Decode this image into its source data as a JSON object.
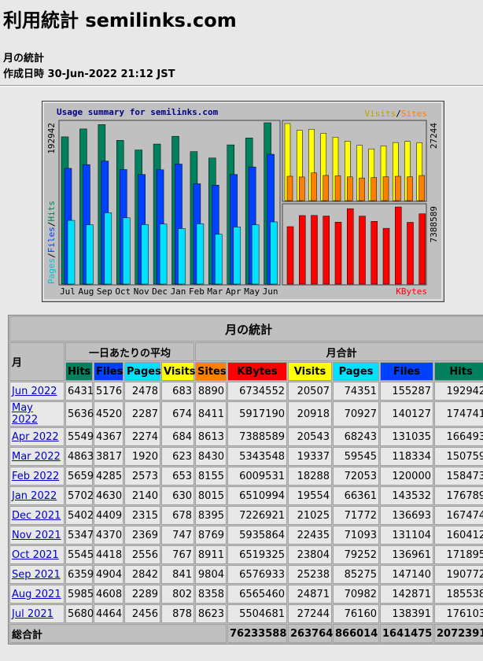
{
  "header": {
    "title": "利用統計 semilinks.com",
    "subtitle": "月の統計",
    "generated_label": "作成日時",
    "generated": "30-Jun-2022 21:12 JST"
  },
  "chart": {
    "title": "Usage summary for semilinks.com",
    "months": [
      "Jul",
      "Aug",
      "Sep",
      "Oct",
      "Nov",
      "Dec",
      "Jan",
      "Feb",
      "Mar",
      "Apr",
      "May",
      "Jun"
    ],
    "hits_max": 192942,
    "visits_max": 27244,
    "kbytes_max": 7388589,
    "legend": {
      "pages": "Pages",
      "files": "Files",
      "hits": "Hits",
      "visits": "Visits",
      "sites": "Sites",
      "kbytes": "KBytes",
      "sep": "/"
    },
    "colors": {
      "hits": "#00805c",
      "files": "#0040ff",
      "pages": "#00e0ff",
      "visits": "#ffff00",
      "sites": "#ff8000",
      "kbytes": "#ff0000"
    }
  },
  "table": {
    "title": "月の統計",
    "month_header": "月",
    "daily_header": "一日あたりの平均",
    "total_header": "月合計",
    "columns": [
      "Hits",
      "Files",
      "Pages",
      "Visits",
      "Sites",
      "KBytes",
      "Visits",
      "Pages",
      "Files",
      "Hits"
    ],
    "rows": [
      [
        "Jun 2022",
        6431,
        5176,
        2478,
        683,
        8890,
        6734552,
        20507,
        74351,
        155287,
        192942
      ],
      [
        "May 2022",
        5636,
        4520,
        2287,
        674,
        8411,
        5917190,
        20918,
        70927,
        140127,
        174741
      ],
      [
        "Apr 2022",
        5549,
        4367,
        2274,
        684,
        8613,
        7388589,
        20543,
        68243,
        131035,
        166493
      ],
      [
        "Mar 2022",
        4863,
        3817,
        1920,
        623,
        8430,
        5343548,
        19337,
        59545,
        118334,
        150759
      ],
      [
        "Feb 2022",
        5659,
        4285,
        2573,
        653,
        8155,
        6009531,
        18288,
        72053,
        120000,
        158473
      ],
      [
        "Jan 2022",
        5702,
        4630,
        2140,
        630,
        8015,
        6510994,
        19554,
        66361,
        143532,
        176789
      ],
      [
        "Dec 2021",
        5402,
        4409,
        2315,
        678,
        8395,
        7226921,
        21025,
        71772,
        136693,
        167474
      ],
      [
        "Nov 2021",
        5347,
        4370,
        2369,
        747,
        8769,
        5935864,
        22435,
        71093,
        131104,
        160412
      ],
      [
        "Oct 2021",
        5545,
        4418,
        2556,
        767,
        8911,
        6519325,
        23804,
        79252,
        136961,
        171895
      ],
      [
        "Sep 2021",
        6359,
        4904,
        2842,
        841,
        9804,
        6576933,
        25238,
        85275,
        147140,
        190772
      ],
      [
        "Aug 2021",
        5985,
        4608,
        2289,
        802,
        8358,
        6565460,
        24871,
        70982,
        142871,
        185538
      ],
      [
        "Jul 2021",
        5680,
        4464,
        2456,
        878,
        8623,
        5504681,
        27244,
        76160,
        138391,
        176103
      ]
    ],
    "total_label": "総合計",
    "totals": [
      76233588,
      263764,
      866014,
      1641475,
      2072391
    ]
  }
}
